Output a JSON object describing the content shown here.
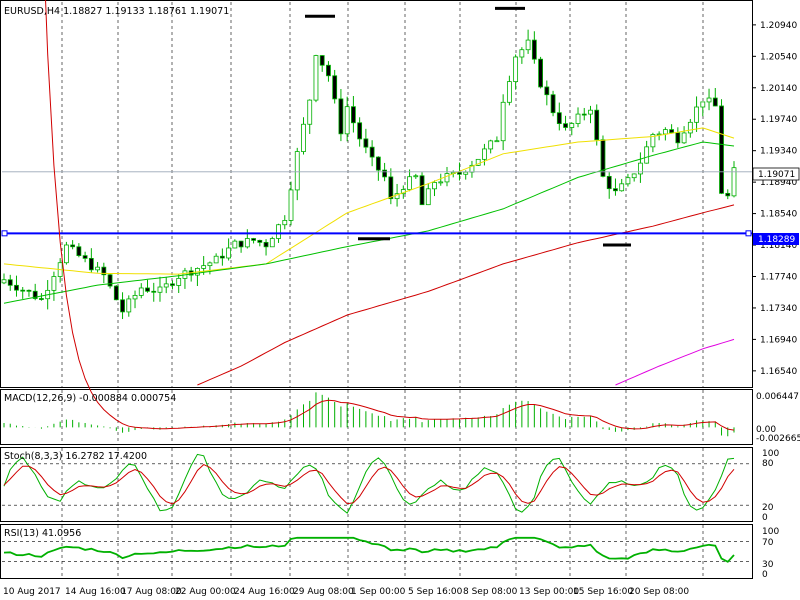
{
  "header": {
    "symbol_info": "EURUSD,H4  1.18827 1.19133 1.18761 1.19071",
    "macd_info": "MACD(12,26,9) -0.000884 0.000754",
    "stoch_info": "Stoch(8,3,3) 16.2782 17.4200",
    "rsi_info": "RSI(13) 41.0956"
  },
  "tags": {
    "current_price": "1.19071",
    "hline_price": "1.18289",
    "macd_max": "0.006447",
    "macd_zero": "0.00",
    "macd_min": "-0.002665"
  },
  "colors": {
    "bull": "#00b000",
    "ma_fast": "#f0e000",
    "ma_mid": "#00c000",
    "ma_slow": "#d00000",
    "ma_long": "#e000e0",
    "hline": "#0000ff",
    "signal": "#d00000",
    "stoch_main": "#00b000",
    "stoch_signal": "#d00000",
    "rsi": "#00b000"
  },
  "chart_data": {
    "type": "candlestick",
    "symbol": "EURUSD",
    "timeframe": "H4",
    "x_labels": [
      "10 Aug 2017",
      "14 Aug 16:00",
      "17 Aug 08:00",
      "22 Aug 00:00",
      "24 Aug 16:00",
      "29 Aug 08:00",
      "1 Sep 00:00",
      "5 Sep 16:00",
      "8 Sep 08:00",
      "13 Sep 00:00",
      "15 Sep 16:00",
      "20 Sep 08:00"
    ],
    "price_axis": {
      "ticks": [
        "1.20940",
        "1.20540",
        "1.20140",
        "1.19740",
        "1.19340",
        "1.18940",
        "1.18540",
        "1.18140",
        "1.17740",
        "1.17340",
        "1.16940",
        "1.16540"
      ],
      "ylim": [
        1.1636,
        1.2118
      ]
    },
    "close_path": [
      [
        0,
        1.177
      ],
      [
        6,
        1.1745
      ],
      [
        10,
        1.1812
      ],
      [
        12,
        1.18
      ],
      [
        16,
        1.1775
      ],
      [
        19,
        1.173
      ],
      [
        22,
        1.176
      ],
      [
        25,
        1.1755
      ],
      [
        28,
        1.1775
      ],
      [
        31,
        1.1785
      ],
      [
        34,
        1.1795
      ],
      [
        37,
        1.1815
      ],
      [
        40,
        1.182
      ],
      [
        42,
        1.1815
      ],
      [
        45,
        1.185
      ],
      [
        47,
        1.193
      ],
      [
        49,
        1.2
      ],
      [
        50,
        1.206
      ],
      [
        52,
        1.203
      ],
      [
        54,
        1.196
      ],
      [
        55,
        1.199
      ],
      [
        57,
        1.195
      ],
      [
        59,
        1.192
      ],
      [
        61,
        1.19
      ],
      [
        62,
        1.187
      ],
      [
        64,
        1.189
      ],
      [
        66,
        1.19
      ],
      [
        67,
        1.1865
      ],
      [
        69,
        1.1895
      ],
      [
        71,
        1.19
      ],
      [
        73,
        1.1905
      ],
      [
        76,
        1.1925
      ],
      [
        79,
        1.195
      ],
      [
        80,
        1.2
      ],
      [
        82,
        1.2055
      ],
      [
        84,
        1.207
      ],
      [
        86,
        1.202
      ],
      [
        88,
        1.1985
      ],
      [
        90,
        1.196
      ],
      [
        92,
        1.1975
      ],
      [
        94,
        1.199
      ],
      [
        96,
        1.19
      ],
      [
        98,
        1.188
      ],
      [
        100,
        1.1895
      ],
      [
        102,
        1.192
      ],
      [
        104,
        1.1955
      ],
      [
        106,
        1.196
      ],
      [
        108,
        1.195
      ],
      [
        110,
        1.1975
      ],
      [
        112,
        1.2
      ],
      [
        114,
        1.199
      ],
      [
        115,
        1.1882
      ],
      [
        116,
        1.1875
      ],
      [
        117,
        1.1907
      ]
    ],
    "moving_averages": [
      {
        "values": [
          [
            0,
            1.179
          ],
          [
            15,
            1.1778
          ],
          [
            28,
            1.1777
          ],
          [
            42,
            1.179
          ],
          [
            55,
            1.1855
          ],
          [
            68,
            1.1892
          ],
          [
            80,
            1.193
          ],
          [
            92,
            1.1945
          ],
          [
            104,
            1.1952
          ],
          [
            112,
            1.1963
          ],
          [
            117,
            1.195
          ]
        ]
      },
      {
        "values": [
          [
            0,
            1.174
          ],
          [
            15,
            1.1763
          ],
          [
            28,
            1.1775
          ],
          [
            42,
            1.179
          ],
          [
            55,
            1.1812
          ],
          [
            68,
            1.1832
          ],
          [
            80,
            1.186
          ],
          [
            92,
            1.19
          ],
          [
            104,
            1.1928
          ],
          [
            112,
            1.1945
          ],
          [
            117,
            1.194
          ]
        ]
      },
      {
        "values": [
          [
            31,
            1.1636
          ],
          [
            38,
            1.166
          ],
          [
            45,
            1.169
          ],
          [
            55,
            1.1725
          ],
          [
            68,
            1.1755
          ],
          [
            80,
            1.179
          ],
          [
            92,
            1.1817
          ],
          [
            104,
            1.1838
          ],
          [
            112,
            1.1855
          ],
          [
            117,
            1.1865
          ]
        ]
      },
      {
        "values": [
          [
            98,
            1.1636
          ],
          [
            105,
            1.166
          ],
          [
            112,
            1.1682
          ],
          [
            117,
            1.1694
          ]
        ]
      }
    ],
    "horizontal_line": 1.18289,
    "macd": {
      "histogram_last": -0.000884,
      "signal_last": 0.000754,
      "ylim": [
        -0.002665,
        0.006447
      ]
    },
    "stochastic": {
      "main_last": 16.2782,
      "signal_last": 17.42,
      "levels": [
        80,
        20
      ],
      "ticks": [
        "100",
        "80",
        "20",
        "0"
      ]
    },
    "rsi": {
      "period": 13,
      "last": 41.0956,
      "levels": [
        70,
        30
      ],
      "ticks": [
        "100",
        "70",
        "30",
        "0"
      ]
    }
  }
}
